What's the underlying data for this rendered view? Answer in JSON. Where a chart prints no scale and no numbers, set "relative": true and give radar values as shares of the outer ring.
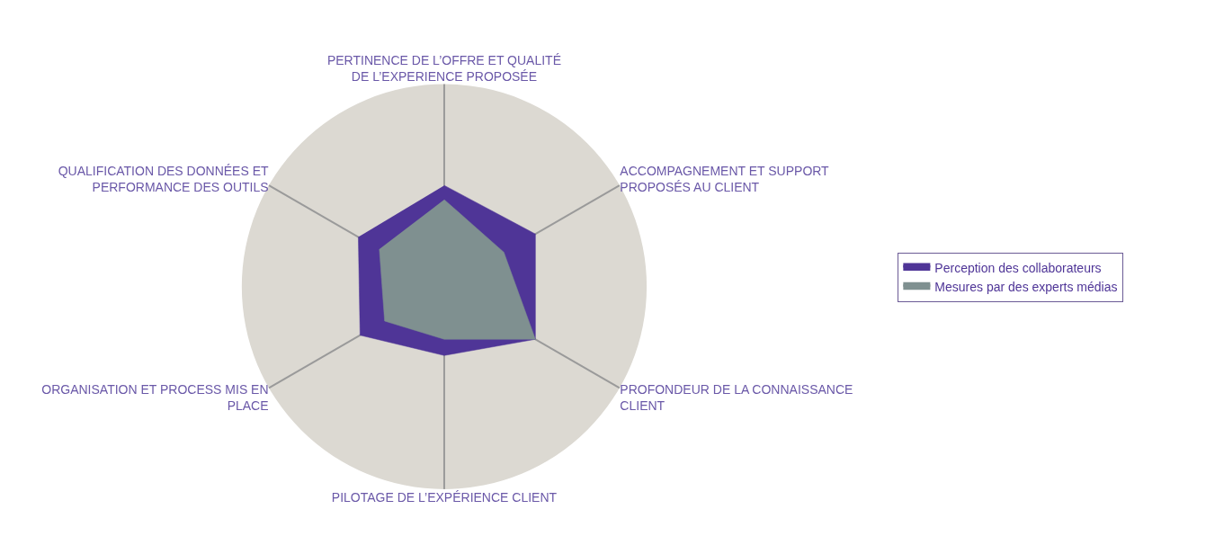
{
  "chart_data": {
    "type": "radar",
    "relative": true,
    "categories": [
      "PERTINENCE DE L’OFFRE ET QUALITÉ DE L’EXPERIENCE PROPOSÉE",
      "ACCOMPAGNEMENT ET SUPPORT PROPOSÉS AU CLIENT",
      "PROFONDEUR DE LA CONNAISSANCE CLIENT",
      "PILOTAGE DE L’EXPÉRIENCE CLIENT",
      "ORGANISATION ET PROCESS MIS EN PLACE",
      "QUALIFICATION DES DONNÉES ET PERFORMANCE DES OUTILS"
    ],
    "series": [
      {
        "name": "Perception des collaborateurs",
        "color": "#4f3597",
        "values": [
          0.5,
          0.52,
          0.52,
          0.34,
          0.48,
          0.49
        ]
      },
      {
        "name": "Mesures par des experts médias",
        "color": "#7f9090",
        "values": [
          0.43,
          0.34,
          0.52,
          0.26,
          0.34,
          0.37
        ]
      }
    ],
    "legend": "right"
  }
}
